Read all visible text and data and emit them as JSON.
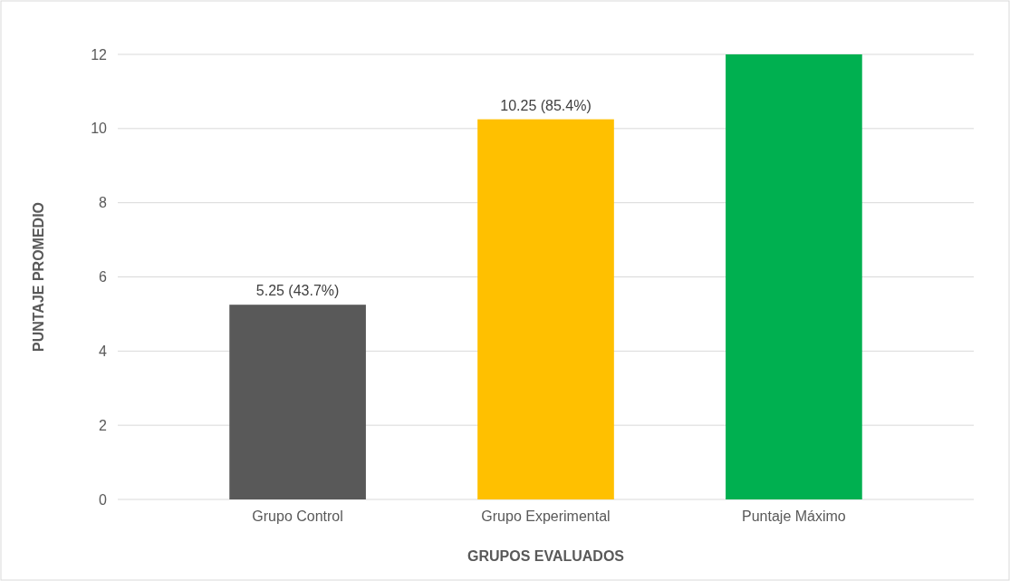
{
  "chart_data": {
    "type": "bar",
    "xlabel": "GRUPOS EVALUADOS",
    "ylabel": "PUNTAJE PROMEDIO",
    "categories": [
      "Grupo Control",
      "Grupo Experimental",
      "Puntaje Máximo"
    ],
    "values": [
      5.25,
      10.25,
      12
    ],
    "colors": [
      "#595959",
      "#ffc000",
      "#00b050"
    ],
    "value_labels": [
      "5.25 (43.7%)",
      "10.25 (85.4%)",
      null
    ],
    "ylim": [
      0,
      12
    ],
    "yticks": [
      0,
      2,
      4,
      6,
      8,
      10,
      12
    ],
    "grid": "y"
  }
}
